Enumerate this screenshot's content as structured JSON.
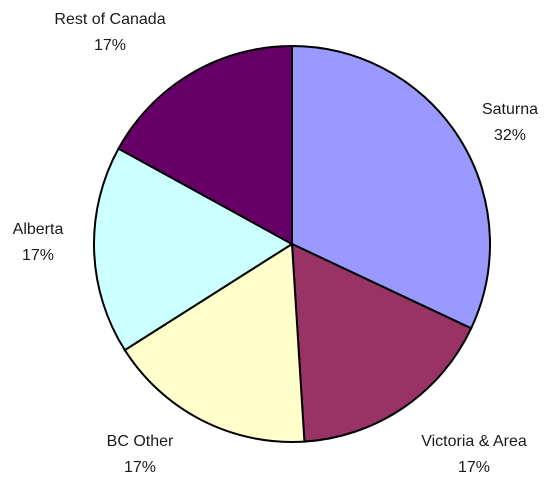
{
  "chart_data": {
    "type": "pie",
    "start_angle_deg": 0,
    "direction": "clockwise",
    "legend": "none",
    "slices": [
      {
        "label": "Saturna",
        "value": 32,
        "value_label": "32%",
        "color": "#9999ff"
      },
      {
        "label": "Victoria & Area",
        "value": 17,
        "value_label": "17%",
        "color": "#993366"
      },
      {
        "label": "BC Other",
        "value": 17,
        "value_label": "17%",
        "color": "#ffffcc"
      },
      {
        "label": "Alberta",
        "value": 17,
        "value_label": "17%",
        "color": "#ccffff"
      },
      {
        "label": "Rest of Canada",
        "value": 17,
        "value_label": "17%",
        "color": "#660066"
      }
    ]
  }
}
